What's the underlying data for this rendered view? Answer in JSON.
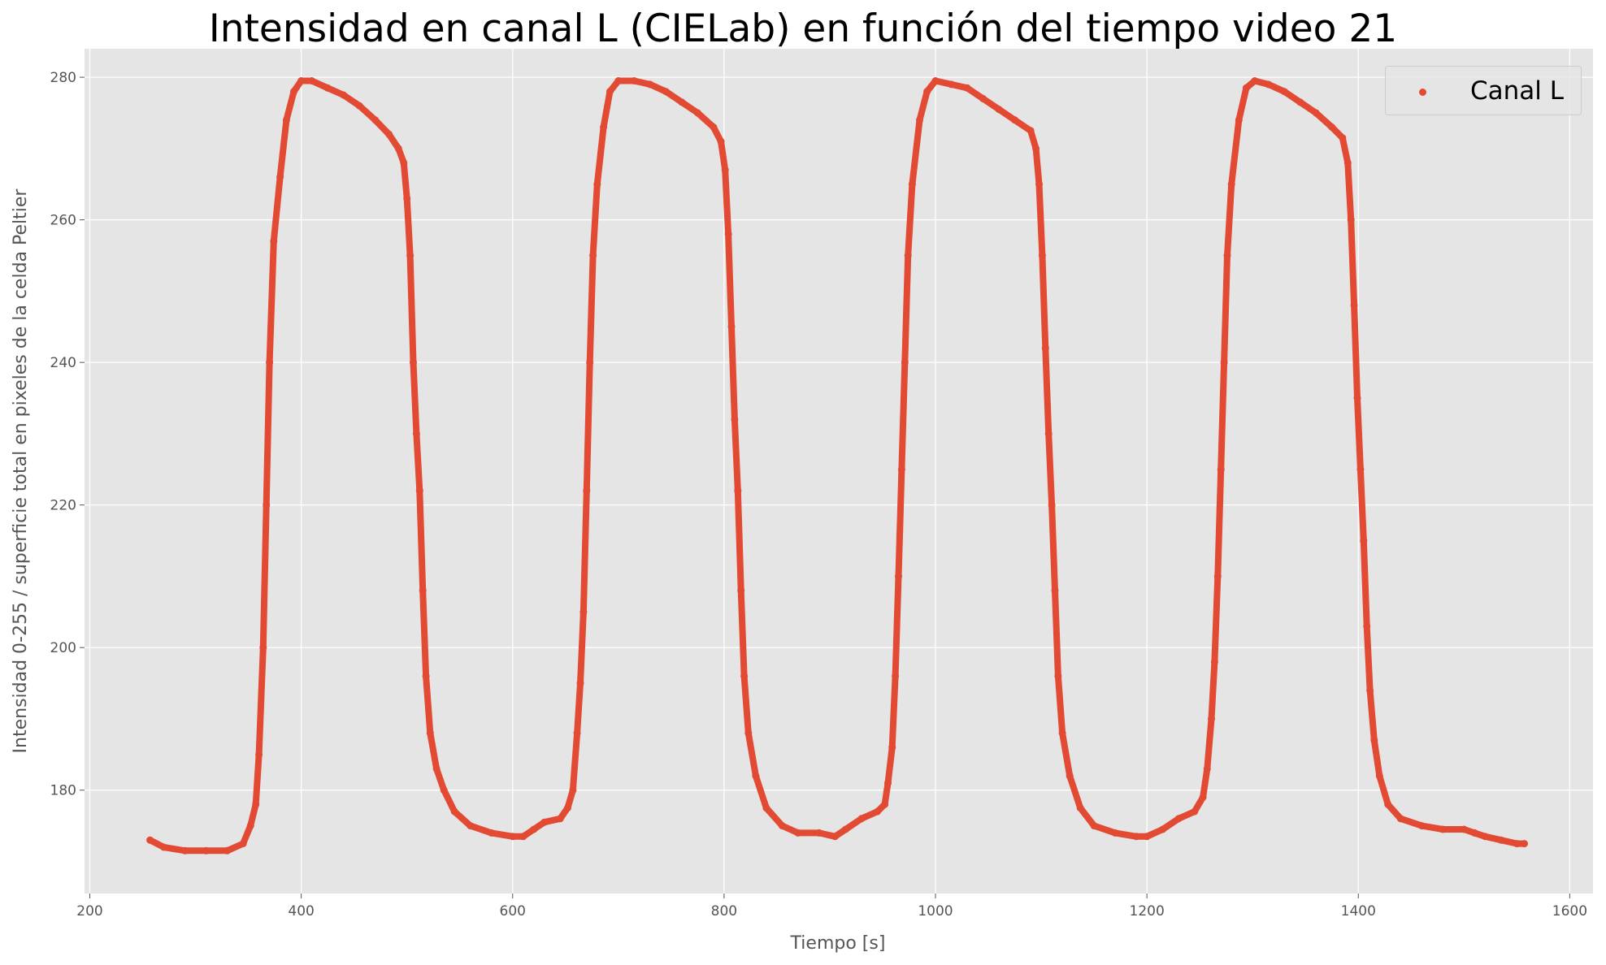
{
  "chart_data": {
    "type": "scatter",
    "title": "Intensidad en canal L (CIELab) en función del tiempo video 21",
    "xlabel": "Tiempo [s]",
    "ylabel": "Intensidad 0-255 / superficie total en pixeles de la celda Peltier",
    "xlim": [
      195,
      1622
    ],
    "ylim": [
      165.5,
      284
    ],
    "xticks": [
      200,
      400,
      600,
      800,
      1000,
      1200,
      1400,
      1600
    ],
    "yticks": [
      180,
      200,
      220,
      240,
      260,
      280
    ],
    "grid": true,
    "legend_position": "top-right",
    "series": [
      {
        "name": "Canal L",
        "color": "#e24a33",
        "marker": "point",
        "points": [
          [
            257,
            173
          ],
          [
            270,
            172
          ],
          [
            290,
            171.5
          ],
          [
            310,
            171.5
          ],
          [
            330,
            171.5
          ],
          [
            345,
            172.5
          ],
          [
            352,
            175
          ],
          [
            357,
            178
          ],
          [
            360,
            185
          ],
          [
            364,
            200
          ],
          [
            367,
            220
          ],
          [
            370,
            240
          ],
          [
            374,
            257
          ],
          [
            380,
            266
          ],
          [
            386,
            274
          ],
          [
            393,
            278
          ],
          [
            400,
            279.5
          ],
          [
            410,
            279.5
          ],
          [
            425,
            278.5
          ],
          [
            440,
            277.5
          ],
          [
            455,
            276
          ],
          [
            470,
            274
          ],
          [
            483,
            272
          ],
          [
            492,
            270
          ],
          [
            497,
            268
          ],
          [
            500,
            263
          ],
          [
            503,
            255
          ],
          [
            506,
            240
          ],
          [
            509,
            230
          ],
          [
            512,
            222
          ],
          [
            515,
            208
          ],
          [
            518,
            196
          ],
          [
            522,
            188
          ],
          [
            528,
            183
          ],
          [
            535,
            180
          ],
          [
            545,
            177
          ],
          [
            560,
            175
          ],
          [
            580,
            174
          ],
          [
            600,
            173.5
          ],
          [
            610,
            173.5
          ],
          [
            620,
            174.5
          ],
          [
            630,
            175.5
          ],
          [
            645,
            176
          ],
          [
            652,
            177.5
          ],
          [
            657,
            180
          ],
          [
            661,
            188
          ],
          [
            664,
            195
          ],
          [
            667,
            205
          ],
          [
            670,
            222
          ],
          [
            673,
            240
          ],
          [
            676,
            255
          ],
          [
            680,
            265
          ],
          [
            686,
            273
          ],
          [
            692,
            278
          ],
          [
            700,
            279.5
          ],
          [
            715,
            279.5
          ],
          [
            730,
            279
          ],
          [
            745,
            278
          ],
          [
            760,
            276.5
          ],
          [
            775,
            275
          ],
          [
            790,
            273
          ],
          [
            797,
            271
          ],
          [
            801,
            267
          ],
          [
            804,
            258
          ],
          [
            807,
            245
          ],
          [
            810,
            232
          ],
          [
            813,
            222
          ],
          [
            816,
            208
          ],
          [
            819,
            196
          ],
          [
            823,
            188
          ],
          [
            830,
            182
          ],
          [
            840,
            177.5
          ],
          [
            855,
            175
          ],
          [
            870,
            174
          ],
          [
            890,
            174
          ],
          [
            905,
            173.5
          ],
          [
            915,
            174.5
          ],
          [
            930,
            176
          ],
          [
            945,
            177
          ],
          [
            952,
            178
          ],
          [
            955,
            181
          ],
          [
            959,
            186
          ],
          [
            962,
            196
          ],
          [
            965,
            210
          ],
          [
            968,
            225
          ],
          [
            971,
            240
          ],
          [
            974,
            255
          ],
          [
            978,
            265
          ],
          [
            985,
            274
          ],
          [
            992,
            278
          ],
          [
            1000,
            279.5
          ],
          [
            1015,
            279
          ],
          [
            1030,
            278.5
          ],
          [
            1045,
            277
          ],
          [
            1060,
            275.5
          ],
          [
            1075,
            274
          ],
          [
            1090,
            272.5
          ],
          [
            1095,
            270
          ],
          [
            1098,
            265
          ],
          [
            1101,
            255
          ],
          [
            1104,
            242
          ],
          [
            1107,
            230
          ],
          [
            1110,
            220
          ],
          [
            1113,
            208
          ],
          [
            1116,
            196
          ],
          [
            1120,
            188
          ],
          [
            1127,
            182
          ],
          [
            1137,
            177.5
          ],
          [
            1150,
            175
          ],
          [
            1170,
            174
          ],
          [
            1190,
            173.5
          ],
          [
            1200,
            173.5
          ],
          [
            1215,
            174.5
          ],
          [
            1230,
            176
          ],
          [
            1245,
            177
          ],
          [
            1253,
            179
          ],
          [
            1257,
            183
          ],
          [
            1261,
            190
          ],
          [
            1264,
            198
          ],
          [
            1267,
            210
          ],
          [
            1270,
            225
          ],
          [
            1273,
            240
          ],
          [
            1276,
            255
          ],
          [
            1280,
            265
          ],
          [
            1287,
            274
          ],
          [
            1294,
            278.5
          ],
          [
            1302,
            279.5
          ],
          [
            1315,
            279
          ],
          [
            1330,
            278
          ],
          [
            1345,
            276.5
          ],
          [
            1360,
            275
          ],
          [
            1375,
            273
          ],
          [
            1385,
            271.5
          ],
          [
            1390,
            268
          ],
          [
            1393,
            260
          ],
          [
            1396,
            248
          ],
          [
            1399,
            235
          ],
          [
            1402,
            225
          ],
          [
            1405,
            215
          ],
          [
            1408,
            203
          ],
          [
            1411,
            194
          ],
          [
            1415,
            187
          ],
          [
            1420,
            182
          ],
          [
            1428,
            178
          ],
          [
            1440,
            176
          ],
          [
            1460,
            175
          ],
          [
            1480,
            174.5
          ],
          [
            1500,
            174.5
          ],
          [
            1510,
            174
          ],
          [
            1520,
            173.5
          ],
          [
            1535,
            173
          ],
          [
            1550,
            172.5
          ],
          [
            1557,
            172.5
          ]
        ]
      }
    ]
  }
}
